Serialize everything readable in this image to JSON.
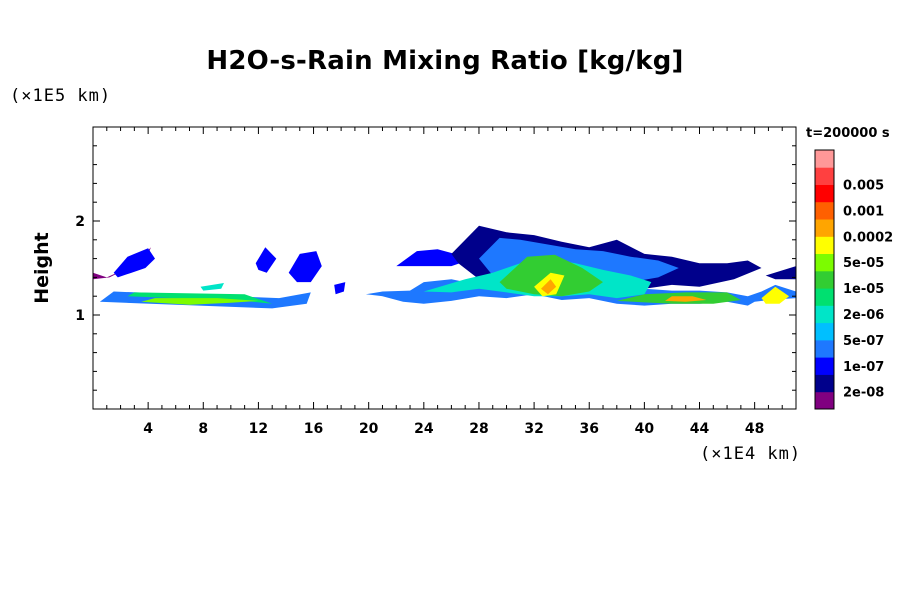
{
  "chart_data": {
    "type": "heatmap",
    "title": "H2O-s-Rain Mixing Ratio [kg/kg]",
    "ylabel": "Height",
    "y_unit": "(×1E5 km)",
    "x_unit": "(×1E4 km)",
    "time_label": "t=200000 s",
    "xlim": [
      0,
      51
    ],
    "ylim": [
      0,
      3
    ],
    "x_ticks": [
      4,
      8,
      12,
      16,
      20,
      24,
      28,
      32,
      36,
      40,
      44,
      48
    ],
    "y_ticks": [
      1,
      2
    ],
    "x_tick_labels": [
      "4",
      "8",
      "12",
      "16",
      "20",
      "24",
      "28",
      "32",
      "36",
      "40",
      "44",
      "48"
    ],
    "y_tick_labels": [
      "1",
      "2"
    ],
    "colorbar": {
      "colors": [
        "#800080",
        "#00008b",
        "#0000ff",
        "#1e78ff",
        "#00bfff",
        "#00e5c8",
        "#00e070",
        "#32cd32",
        "#7cfc00",
        "#ffff00",
        "#ffa500",
        "#ff6000",
        "#ff0000",
        "#ff4040",
        "#ff9898"
      ],
      "labels": [
        "2e-08",
        "1e-07",
        "5e-07",
        "2e-06",
        "1e-05",
        "5e-05",
        "0.0002",
        "0.001",
        "0.005"
      ]
    },
    "cloud_regions": [
      {
        "x": [
          0,
          0,
          1.2,
          3.2,
          4.2,
          3.8,
          2.2,
          1.0,
          0
        ],
        "y": [
          1.45,
          1.38,
          1.4,
          1.55,
          1.72,
          1.56,
          1.48,
          1.4,
          1.45
        ],
        "level": 0
      },
      {
        "x": [
          1.5,
          2.5,
          4,
          4.5,
          3.8,
          2.8,
          1.8
        ],
        "y": [
          1.45,
          1.62,
          1.71,
          1.6,
          1.5,
          1.45,
          1.4
        ],
        "level": 2
      },
      {
        "x": [
          11.8,
          12.5,
          13.3,
          12.6,
          12
        ],
        "y": [
          1.55,
          1.72,
          1.6,
          1.45,
          1.48
        ],
        "level": 2
      },
      {
        "x": [
          14.2,
          15,
          16.2,
          16.6,
          15.8,
          14.8
        ],
        "y": [
          1.45,
          1.65,
          1.68,
          1.52,
          1.35,
          1.35
        ],
        "level": 2
      },
      {
        "x": [
          17.5,
          18.3,
          18.2,
          17.6
        ],
        "y": [
          1.32,
          1.35,
          1.25,
          1.22
        ],
        "level": 2
      },
      {
        "x": [
          0.5,
          13,
          15.5,
          15.8,
          13.5,
          1.5,
          0.5
        ],
        "y": [
          1.14,
          1.07,
          1.12,
          1.24,
          1.18,
          1.25,
          1.14
        ],
        "level": 3
      },
      {
        "x": [
          2.5,
          11,
          13,
          11,
          3,
          2.5
        ],
        "y": [
          1.2,
          1.15,
          1.12,
          1.22,
          1.24,
          1.2
        ],
        "level": 6
      },
      {
        "x": [
          3.5,
          7,
          10,
          12,
          9,
          4.5
        ],
        "y": [
          1.14,
          1.11,
          1.13,
          1.15,
          1.18,
          1.18
        ],
        "level": 8
      },
      {
        "x": [
          7.8,
          9.5,
          9.3,
          8
        ],
        "y": [
          1.3,
          1.34,
          1.28,
          1.26
        ],
        "level": 5
      },
      {
        "x": [
          19.8,
          21,
          22.5,
          24,
          26,
          28,
          30,
          32,
          34,
          36,
          38,
          40,
          42,
          44,
          46,
          47.5,
          48,
          49,
          51,
          51,
          49.5,
          48.5,
          47.5,
          46,
          44,
          42,
          40,
          38,
          36,
          34,
          32,
          30,
          28,
          26,
          24,
          23,
          21,
          19.8
        ],
        "y": [
          1.22,
          1.2,
          1.14,
          1.12,
          1.15,
          1.2,
          1.18,
          1.22,
          1.16,
          1.18,
          1.12,
          1.1,
          1.12,
          1.12,
          1.14,
          1.1,
          1.14,
          1.16,
          1.18,
          1.25,
          1.32,
          1.25,
          1.2,
          1.24,
          1.26,
          1.26,
          1.28,
          1.3,
          1.36,
          1.3,
          1.28,
          1.3,
          1.32,
          1.38,
          1.35,
          1.26,
          1.25,
          1.22
        ],
        "level": 3
      },
      {
        "x": [
          22,
          23.5,
          25,
          27,
          26.8,
          26,
          24,
          22.5
        ],
        "y": [
          1.52,
          1.68,
          1.7,
          1.62,
          1.56,
          1.52,
          1.52,
          1.52
        ],
        "level": 2
      },
      {
        "x": [
          26,
          28,
          30,
          32,
          34,
          36,
          38,
          40,
          42,
          44,
          46,
          47.5,
          48.5,
          46.5,
          44,
          42,
          40,
          38,
          36,
          34,
          32,
          30,
          28,
          26.5,
          26
        ],
        "y": [
          1.65,
          1.95,
          1.88,
          1.85,
          1.78,
          1.72,
          1.8,
          1.65,
          1.62,
          1.55,
          1.55,
          1.58,
          1.5,
          1.38,
          1.3,
          1.32,
          1.28,
          1.3,
          1.38,
          1.32,
          1.28,
          1.33,
          1.38,
          1.55,
          1.65
        ],
        "level": 1
      },
      {
        "x": [
          28,
          29.5,
          31,
          33,
          35,
          37,
          39,
          41,
          42.5,
          41,
          39,
          37,
          35,
          33,
          31,
          29,
          28
        ],
        "y": [
          1.6,
          1.82,
          1.8,
          1.75,
          1.7,
          1.68,
          1.62,
          1.58,
          1.5,
          1.4,
          1.35,
          1.38,
          1.42,
          1.35,
          1.36,
          1.42,
          1.6
        ],
        "level": 3
      },
      {
        "x": [
          24,
          27,
          29,
          31,
          33,
          35,
          37,
          39,
          40.5,
          40,
          38,
          36,
          34,
          32,
          30,
          28,
          26,
          24
        ],
        "y": [
          1.25,
          1.38,
          1.45,
          1.55,
          1.6,
          1.55,
          1.48,
          1.42,
          1.35,
          1.22,
          1.18,
          1.22,
          1.2,
          1.2,
          1.24,
          1.28,
          1.24,
          1.25
        ],
        "level": 5
      },
      {
        "x": [
          29.5,
          31.5,
          33.5,
          35.5,
          37,
          36,
          34,
          32,
          30
        ],
        "y": [
          1.35,
          1.62,
          1.64,
          1.5,
          1.35,
          1.25,
          1.2,
          1.22,
          1.28
        ],
        "level": 7
      },
      {
        "x": [
          32,
          33.2,
          34.2,
          33.6,
          32.6
        ],
        "y": [
          1.3,
          1.45,
          1.42,
          1.22,
          1.2
        ],
        "level": 9
      },
      {
        "x": [
          32.5,
          33.2,
          33.6,
          33
        ],
        "y": [
          1.28,
          1.38,
          1.3,
          1.22
        ],
        "level": 10
      },
      {
        "x": [
          38,
          42,
          45,
          47,
          46,
          43,
          40,
          38
        ],
        "y": [
          1.15,
          1.12,
          1.12,
          1.16,
          1.24,
          1.24,
          1.22,
          1.15
        ],
        "level": 7
      },
      {
        "x": [
          41.5,
          43,
          44.5,
          43.5,
          42
        ],
        "y": [
          1.15,
          1.14,
          1.16,
          1.2,
          1.2
        ],
        "level": 10
      },
      {
        "x": [
          48.5,
          49.5,
          50.5,
          49.8,
          48.8
        ],
        "y": [
          1.18,
          1.3,
          1.2,
          1.12,
          1.12
        ],
        "level": 9
      },
      {
        "x": [
          48.8,
          51,
          51,
          49.5,
          48.8
        ],
        "y": [
          1.42,
          1.52,
          1.38,
          1.38,
          1.42
        ],
        "level": 1
      }
    ]
  }
}
